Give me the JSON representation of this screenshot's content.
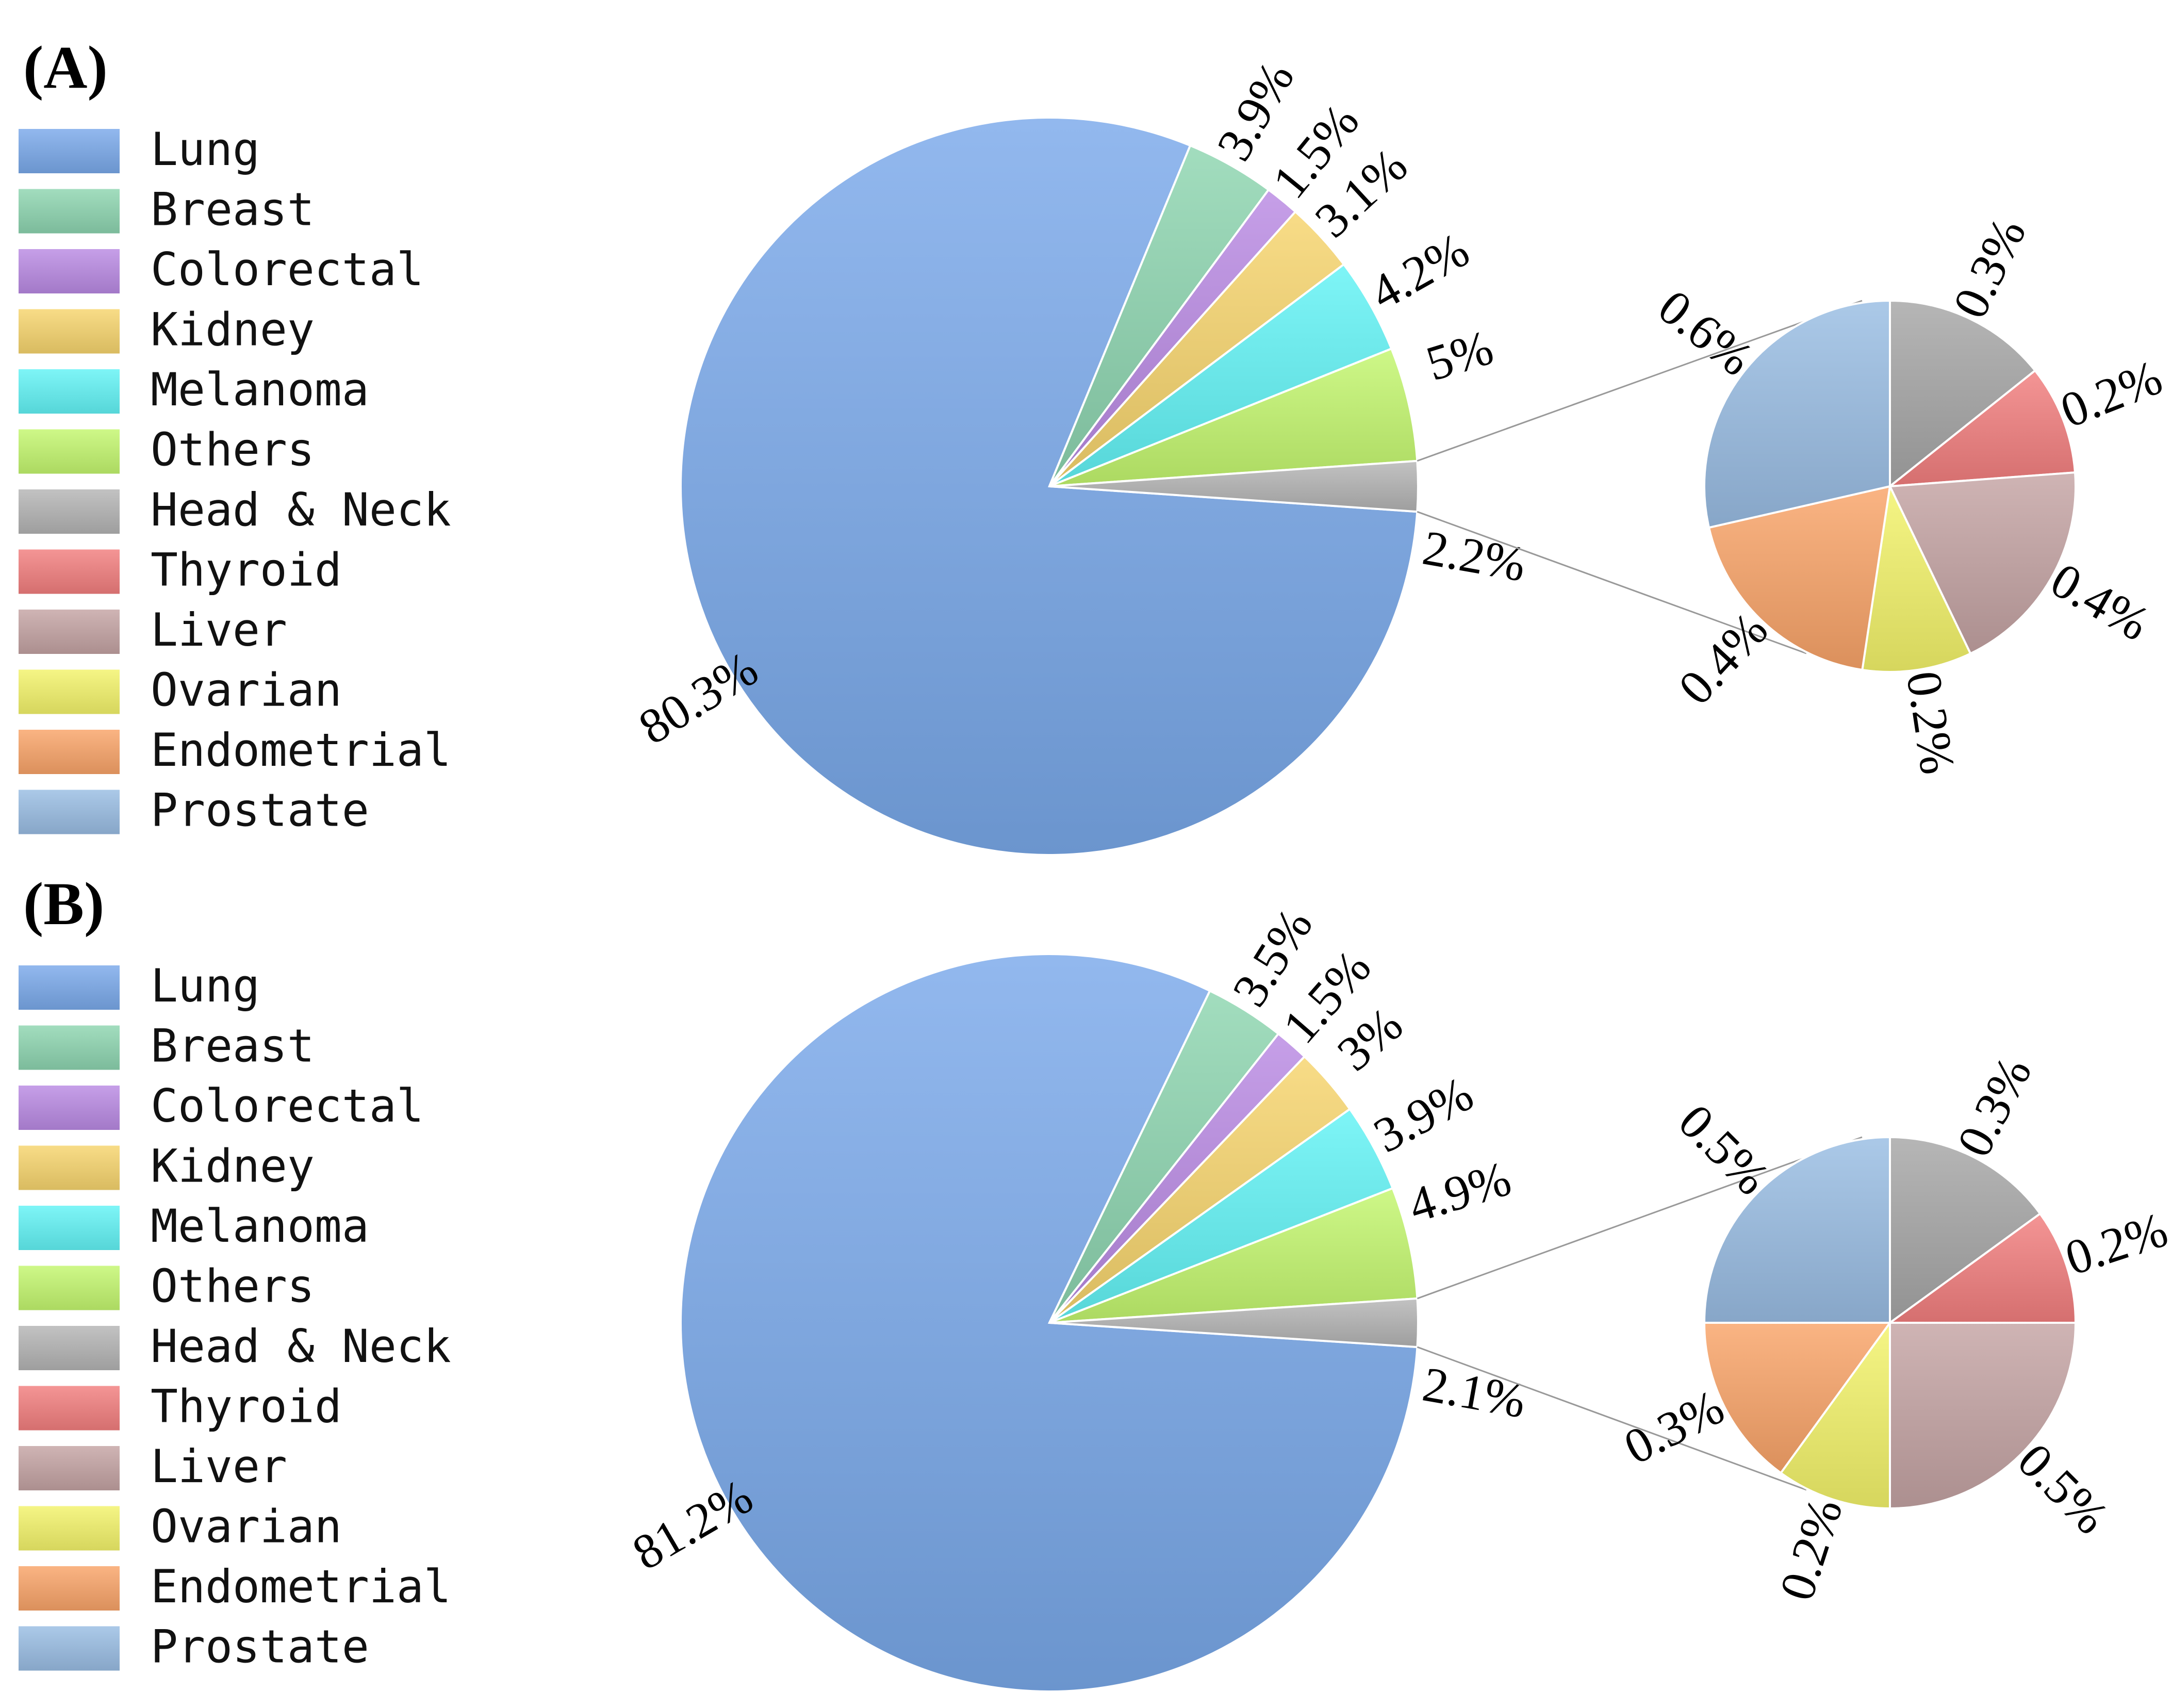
{
  "chart_data": [
    {
      "type": "pie",
      "panel_label": "(A)",
      "legend": [
        "Lung",
        "Breast",
        "Colorectal",
        "Kidney",
        "Melanoma",
        "Others",
        "Head & Neck",
        "Thyroid",
        "Liver",
        "Ovarian",
        "Endometrial",
        "Prostate"
      ],
      "main_slices": [
        {
          "name": "Lung",
          "value": 80.3,
          "label": "80.3%",
          "color": "#7aa9ea"
        },
        {
          "name": "Breast",
          "value": 3.9,
          "label": "3.9%",
          "color": "#8dd5b0"
        },
        {
          "name": "Colorectal",
          "value": 1.5,
          "label": "1.5%",
          "color": "#b98ae3"
        },
        {
          "name": "Kidney",
          "value": 3.1,
          "label": "3.1%",
          "color": "#f7d46d"
        },
        {
          "name": "Melanoma",
          "value": 4.2,
          "label": "4.2%",
          "color": "#62f3f5"
        },
        {
          "name": "Others",
          "value": 5,
          "label": "5%",
          "color": "#c3f76e"
        },
        {
          "name": "Head & Neck",
          "value": 2.2,
          "label": "2.2%",
          "color": "#b4b4b4"
        }
      ],
      "breakdown_of": "Head & Neck",
      "sub_slices": [
        {
          "name": "Head & Neck",
          "value": 0.3,
          "label": "0.3%",
          "color": "#a6a6a6"
        },
        {
          "name": "Thyroid",
          "value": 0.2,
          "label": "0.2%",
          "color": "#f27e7e"
        },
        {
          "name": "Liver",
          "value": 0.4,
          "label": "0.4%",
          "color": "#c4a3a3"
        },
        {
          "name": "Ovarian",
          "value": 0.2,
          "label": "0.2%",
          "color": "#f3f36a"
        },
        {
          "name": "Endometrial",
          "value": 0.4,
          "label": "0.4%",
          "color": "#f9a468"
        },
        {
          "name": "Prostate",
          "value": 0.6,
          "label": "0.6%",
          "color": "#99bde3"
        }
      ]
    },
    {
      "type": "pie",
      "panel_label": "(B)",
      "legend": [
        "Lung",
        "Breast",
        "Colorectal",
        "Kidney",
        "Melanoma",
        "Others",
        "Head & Neck",
        "Thyroid",
        "Liver",
        "Ovarian",
        "Endometrial",
        "Prostate"
      ],
      "main_slices": [
        {
          "name": "Lung",
          "value": 81.2,
          "label": "81.2%",
          "color": "#7aa9ea"
        },
        {
          "name": "Breast",
          "value": 3.5,
          "label": "3.5%",
          "color": "#8dd5b0"
        },
        {
          "name": "Colorectal",
          "value": 1.5,
          "label": "1.5%",
          "color": "#b98ae3"
        },
        {
          "name": "Kidney",
          "value": 3,
          "label": "3%",
          "color": "#f7d46d"
        },
        {
          "name": "Melanoma",
          "value": 3.9,
          "label": "3.9%",
          "color": "#62f3f5"
        },
        {
          "name": "Others",
          "value": 4.9,
          "label": "4.9%",
          "color": "#c3f76e"
        },
        {
          "name": "Head & Neck",
          "value": 2.1,
          "label": "2.1%",
          "color": "#b4b4b4"
        }
      ],
      "breakdown_of": "Head & Neck",
      "sub_slices": [
        {
          "name": "Head & Neck",
          "value": 0.3,
          "label": "0.3%",
          "color": "#a6a6a6"
        },
        {
          "name": "Thyroid",
          "value": 0.2,
          "label": "0.2%",
          "color": "#f27e7e"
        },
        {
          "name": "Liver",
          "value": 0.5,
          "label": "0.5%",
          "color": "#c4a3a3"
        },
        {
          "name": "Ovarian",
          "value": 0.2,
          "label": "0.2%",
          "color": "#f3f36a"
        },
        {
          "name": "Endometrial",
          "value": 0.3,
          "label": "0.3%",
          "color": "#f9a468"
        },
        {
          "name": "Prostate",
          "value": 0.5,
          "label": "0.5%",
          "color": "#99bde3"
        }
      ]
    }
  ],
  "legend_colors": {
    "Lung": "#7aa9ea",
    "Breast": "#8dd5b0",
    "Colorectal": "#b98ae3",
    "Kidney": "#f7d46d",
    "Melanoma": "#62f3f5",
    "Others": "#c3f76e",
    "Head & Neck": "#b4b4b4",
    "Thyroid": "#f27e7e",
    "Liver": "#c4a3a3",
    "Ovarian": "#f3f36a",
    "Endometrial": "#f9a468",
    "Prostate": "#99bde3"
  }
}
